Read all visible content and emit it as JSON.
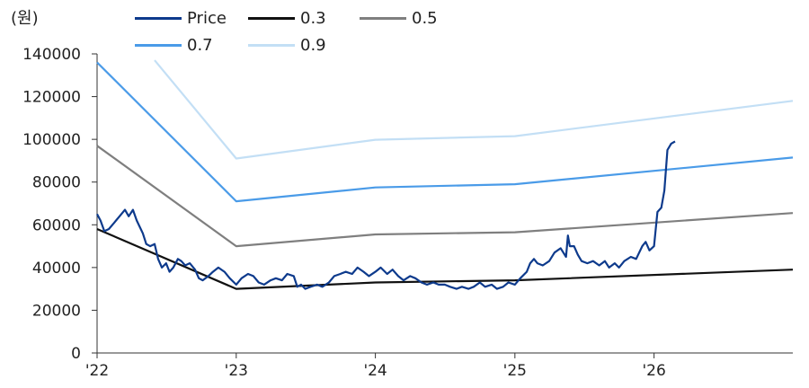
{
  "chart_data": {
    "type": "line",
    "unit_label": "(원)",
    "title": "",
    "xlabel": "",
    "ylabel": "",
    "ylim": [
      0,
      140000
    ],
    "y_ticks": [
      "0",
      "20000",
      "40000",
      "60000",
      "80000",
      "100000",
      "120000",
      "140000"
    ],
    "x_range": [
      "2022-01-01",
      "2026-12-31"
    ],
    "x_ticks": [
      {
        "label": "'22",
        "date": "2022-01-01"
      },
      {
        "label": "'23",
        "date": "2023-01-01"
      },
      {
        "label": "'24",
        "date": "2024-01-01"
      },
      {
        "label": "'25",
        "date": "2025-01-01"
      },
      {
        "label": "'26",
        "date": "2026-01-01"
      }
    ],
    "grid": false,
    "legend_position": "top",
    "series": [
      {
        "name": "Price",
        "color": "#0d3a8c",
        "width": 2.2,
        "points": [
          [
            "2022-01-01",
            65000
          ],
          [
            "2022-01-10",
            62000
          ],
          [
            "2022-01-20",
            57000
          ],
          [
            "2022-02-01",
            58000
          ],
          [
            "2022-02-15",
            61000
          ],
          [
            "2022-03-01",
            64000
          ],
          [
            "2022-03-15",
            67000
          ],
          [
            "2022-03-25",
            64000
          ],
          [
            "2022-04-05",
            67000
          ],
          [
            "2022-04-15",
            62000
          ],
          [
            "2022-05-01",
            56000
          ],
          [
            "2022-05-10",
            51000
          ],
          [
            "2022-05-20",
            50000
          ],
          [
            "2022-06-01",
            51000
          ],
          [
            "2022-06-10",
            44000
          ],
          [
            "2022-06-20",
            40000
          ],
          [
            "2022-07-01",
            42000
          ],
          [
            "2022-07-10",
            38000
          ],
          [
            "2022-07-20",
            40000
          ],
          [
            "2022-08-01",
            44000
          ],
          [
            "2022-08-10",
            43000
          ],
          [
            "2022-08-20",
            41000
          ],
          [
            "2022-09-01",
            42000
          ],
          [
            "2022-09-15",
            39000
          ],
          [
            "2022-09-25",
            35000
          ],
          [
            "2022-10-05",
            34000
          ],
          [
            "2022-10-20",
            36000
          ],
          [
            "2022-11-01",
            38000
          ],
          [
            "2022-11-15",
            40000
          ],
          [
            "2022-12-01",
            38000
          ],
          [
            "2022-12-15",
            35000
          ],
          [
            "2023-01-01",
            32000
          ],
          [
            "2023-01-15",
            35000
          ],
          [
            "2023-02-01",
            37000
          ],
          [
            "2023-02-15",
            36000
          ],
          [
            "2023-03-01",
            33000
          ],
          [
            "2023-03-15",
            32000
          ],
          [
            "2023-04-01",
            34000
          ],
          [
            "2023-04-15",
            35000
          ],
          [
            "2023-05-01",
            34000
          ],
          [
            "2023-05-15",
            37000
          ],
          [
            "2023-06-01",
            36000
          ],
          [
            "2023-06-10",
            31000
          ],
          [
            "2023-06-20",
            32000
          ],
          [
            "2023-07-01",
            30000
          ],
          [
            "2023-07-15",
            31000
          ],
          [
            "2023-08-01",
            32000
          ],
          [
            "2023-08-15",
            31000
          ],
          [
            "2023-09-01",
            33000
          ],
          [
            "2023-09-15",
            36000
          ],
          [
            "2023-10-01",
            37000
          ],
          [
            "2023-10-15",
            38000
          ],
          [
            "2023-11-01",
            37000
          ],
          [
            "2023-11-15",
            40000
          ],
          [
            "2023-12-01",
            38000
          ],
          [
            "2023-12-15",
            36000
          ],
          [
            "2024-01-01",
            38000
          ],
          [
            "2024-01-15",
            40000
          ],
          [
            "2024-02-01",
            37000
          ],
          [
            "2024-02-15",
            39000
          ],
          [
            "2024-03-01",
            36000
          ],
          [
            "2024-03-15",
            34000
          ],
          [
            "2024-04-01",
            36000
          ],
          [
            "2024-04-15",
            35000
          ],
          [
            "2024-05-01",
            33000
          ],
          [
            "2024-05-15",
            32000
          ],
          [
            "2024-06-01",
            33000
          ],
          [
            "2024-06-15",
            32000
          ],
          [
            "2024-07-01",
            32000
          ],
          [
            "2024-07-15",
            31000
          ],
          [
            "2024-08-01",
            30000
          ],
          [
            "2024-08-15",
            31000
          ],
          [
            "2024-09-01",
            30000
          ],
          [
            "2024-09-15",
            31000
          ],
          [
            "2024-10-01",
            33000
          ],
          [
            "2024-10-15",
            31000
          ],
          [
            "2024-11-01",
            32000
          ],
          [
            "2024-11-15",
            30000
          ],
          [
            "2024-12-01",
            31000
          ],
          [
            "2024-12-15",
            33000
          ],
          [
            "2025-01-01",
            32000
          ],
          [
            "2025-01-15",
            35000
          ],
          [
            "2025-02-01",
            38000
          ],
          [
            "2025-02-10",
            42000
          ],
          [
            "2025-02-20",
            44000
          ],
          [
            "2025-03-01",
            42000
          ],
          [
            "2025-03-15",
            41000
          ],
          [
            "2025-04-01",
            43000
          ],
          [
            "2025-04-15",
            47000
          ],
          [
            "2025-05-01",
            49000
          ],
          [
            "2025-05-15",
            45000
          ],
          [
            "2025-05-20",
            55000
          ],
          [
            "2025-05-25",
            50000
          ],
          [
            "2025-06-05",
            50000
          ],
          [
            "2025-06-15",
            46000
          ],
          [
            "2025-06-25",
            43000
          ],
          [
            "2025-07-10",
            42000
          ],
          [
            "2025-07-25",
            43000
          ],
          [
            "2025-08-10",
            41000
          ],
          [
            "2025-08-25",
            43000
          ],
          [
            "2025-09-05",
            40000
          ],
          [
            "2025-09-20",
            42000
          ],
          [
            "2025-10-01",
            40000
          ],
          [
            "2025-10-15",
            43000
          ],
          [
            "2025-11-01",
            45000
          ],
          [
            "2025-11-15",
            44000
          ],
          [
            "2025-12-01",
            50000
          ],
          [
            "2025-12-10",
            52000
          ],
          [
            "2025-12-20",
            48000
          ],
          [
            "2026-01-01",
            50000
          ],
          [
            "2026-01-10",
            66000
          ],
          [
            "2026-01-20",
            68000
          ],
          [
            "2026-01-28",
            76000
          ],
          [
            "2026-02-05",
            95000
          ],
          [
            "2026-02-15",
            98000
          ],
          [
            "2026-02-25",
            99000
          ]
        ]
      },
      {
        "name": "0.3",
        "color": "#111111",
        "width": 2.2,
        "points": [
          [
            "2022-01-01",
            58000
          ],
          [
            "2023-01-01",
            30000
          ],
          [
            "2024-01-01",
            33000
          ],
          [
            "2025-01-01",
            34000
          ],
          [
            "2026-12-31",
            39000
          ]
        ]
      },
      {
        "name": "0.5",
        "color": "#7f7f7f",
        "width": 2.2,
        "points": [
          [
            "2022-01-01",
            97000
          ],
          [
            "2023-01-01",
            50000
          ],
          [
            "2024-01-01",
            55500
          ],
          [
            "2025-01-01",
            56500
          ],
          [
            "2026-12-31",
            65500
          ]
        ]
      },
      {
        "name": "0.7",
        "color": "#4a9be8",
        "width": 2.2,
        "points": [
          [
            "2022-01-01",
            136000
          ],
          [
            "2023-01-01",
            71000
          ],
          [
            "2024-01-01",
            77500
          ],
          [
            "2025-01-01",
            79000
          ],
          [
            "2026-12-31",
            91500
          ]
        ]
      },
      {
        "name": "0.9",
        "color": "#c3dff5",
        "width": 2.2,
        "points": [
          [
            "2022-06-01",
            137000
          ],
          [
            "2023-01-01",
            91000
          ],
          [
            "2024-01-01",
            99800
          ],
          [
            "2025-01-01",
            101500
          ],
          [
            "2026-12-31",
            118000
          ]
        ]
      }
    ]
  }
}
